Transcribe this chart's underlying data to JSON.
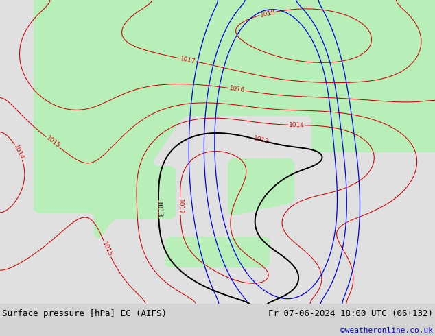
{
  "title_left": "Surface pressure [hPa] EC (AIFS)",
  "title_right": "Fr 07-06-2024 18:00 UTC (06+132)",
  "credit": "©weatheronline.co.uk",
  "sea_color": "#e0e0e0",
  "land_color": "#b8efb8",
  "contour_color_red": "#cc0000",
  "contour_color_black": "#000000",
  "contour_color_blue": "#0000dd",
  "footer_bg": "#d4d4d4",
  "label_fontsize": 6.5,
  "footer_fontsize": 9,
  "credit_fontsize": 8,
  "credit_color": "#0000cc"
}
